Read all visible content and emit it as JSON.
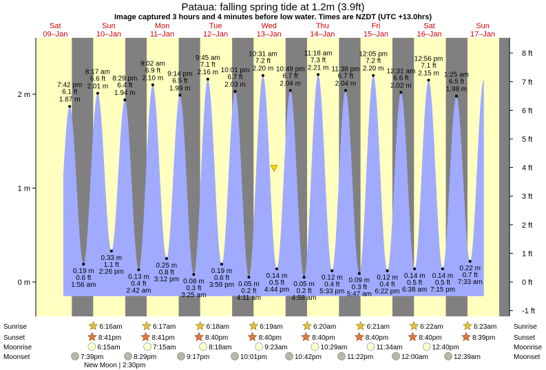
{
  "title": "Pataua: falling  spring tide at 1.2m (3.9ft)",
  "subtitle": "Image captured 3 hours and 4 minutes before low water. Times are NZDT (UTC +13.0hrs)",
  "colors": {
    "day_bg": "#ffffc0",
    "night_bg": "#808080",
    "tide_fill": "#a0aaff",
    "day_label": "#d00000",
    "marker": "#ffd700"
  },
  "chart_data": {
    "type": "area",
    "y_left_unit": "m",
    "y_right_unit": "ft",
    "ylim_m": [
      -0.37,
      2.62
    ],
    "left_ticks": [
      "0 m",
      "1 m",
      "2 m"
    ],
    "right_ticks": [
      "-1 ft",
      "0 ft",
      "1 ft",
      "2 ft",
      "3 ft",
      "4 ft",
      "5 ft",
      "6 ft",
      "7 ft",
      "8 ft"
    ],
    "days": [
      {
        "dow": "Sat",
        "date": "09–Jan"
      },
      {
        "dow": "Sun",
        "date": "10–Jan"
      },
      {
        "dow": "Mon",
        "date": "11–Jan"
      },
      {
        "dow": "Tue",
        "date": "12–Jan"
      },
      {
        "dow": "Wed",
        "date": "13–Jan"
      },
      {
        "dow": "Thu",
        "date": "14–Jan"
      },
      {
        "dow": "Fri",
        "date": "15–Jan"
      },
      {
        "dow": "Sat",
        "date": "16–Jan"
      },
      {
        "dow": "Sun",
        "date": "17–Jan"
      }
    ],
    "tides": [
      {
        "type": "high",
        "time": "7:42 pm",
        "ft": "6.1 ft",
        "m": "1.87 m",
        "day": 0,
        "hour": 19.7
      },
      {
        "type": "low",
        "time": "1:56 am",
        "ft": "0.6 ft",
        "m": "0.19 m",
        "day": 1,
        "hour": 1.93
      },
      {
        "type": "high",
        "time": "8:17 am",
        "ft": "6.6 ft",
        "m": "2.01 m",
        "day": 1,
        "hour": 8.28
      },
      {
        "type": "low",
        "time": "2:26 pm",
        "ft": "1.1 ft",
        "m": "0.33 m",
        "day": 1,
        "hour": 14.43
      },
      {
        "type": "high",
        "time": "8:29 pm",
        "ft": "6.4 ft",
        "m": "1.94 m",
        "day": 1,
        "hour": 20.48
      },
      {
        "type": "low",
        "time": "2:42 am",
        "ft": "0.4 ft",
        "m": "0.13 m",
        "day": 2,
        "hour": 2.7
      },
      {
        "type": "high",
        "time": "9:02 am",
        "ft": "6.9 ft",
        "m": "2.10 m",
        "day": 2,
        "hour": 9.03
      },
      {
        "type": "low",
        "time": "3:12 pm",
        "ft": "0.8 ft",
        "m": "0.25 m",
        "day": 2,
        "hour": 15.2
      },
      {
        "type": "high",
        "time": "9:14 pm",
        "ft": "6.5 ft",
        "m": "1.99 m",
        "day": 2,
        "hour": 21.23
      },
      {
        "type": "low",
        "time": "3:25 am",
        "ft": "0.3 ft",
        "m": "0.08 m",
        "day": 3,
        "hour": 3.42
      },
      {
        "type": "high",
        "time": "9:45 am",
        "ft": "7.1 ft",
        "m": "2.16 m",
        "day": 3,
        "hour": 9.75
      },
      {
        "type": "low",
        "time": "3:59 pm",
        "ft": "0.6 ft",
        "m": "0.19 m",
        "day": 3,
        "hour": 15.98
      },
      {
        "type": "high",
        "time": "10:01 pm",
        "ft": "6.7 ft",
        "m": "2.03 m",
        "day": 3,
        "hour": 22.02
      },
      {
        "type": "low",
        "time": "4:11 am",
        "ft": "0.2 ft",
        "m": "0.05 m",
        "day": 4,
        "hour": 4.18
      },
      {
        "type": "high",
        "time": "10:31 am",
        "ft": "7.2 ft",
        "m": "2.20 m",
        "day": 4,
        "hour": 10.52
      },
      {
        "type": "low",
        "time": "4:44 pm",
        "ft": "0.5 ft",
        "m": "0.14 m",
        "day": 4,
        "hour": 16.73
      },
      {
        "type": "high",
        "time": "10:49 pm",
        "ft": "6.7 ft",
        "m": "2.04 m",
        "day": 4,
        "hour": 22.82
      },
      {
        "type": "low",
        "time": "4:58 am",
        "ft": "0.2 ft",
        "m": "0.05 m",
        "day": 5,
        "hour": 4.97
      },
      {
        "type": "high",
        "time": "11:18 am",
        "ft": "7.3 ft",
        "m": "2.21 m",
        "day": 5,
        "hour": 11.3
      },
      {
        "type": "low",
        "time": "5:33 pm",
        "ft": "0.4 ft",
        "m": "0.12 m",
        "day": 5,
        "hour": 17.55
      },
      {
        "type": "high",
        "time": "11:38 pm",
        "ft": "6.7 ft",
        "m": "2.04 m",
        "day": 5,
        "hour": 23.63
      },
      {
        "type": "low",
        "time": "5:47 am",
        "ft": "0.3 ft",
        "m": "0.09 m",
        "day": 6,
        "hour": 5.78
      },
      {
        "type": "high",
        "time": "12:05 pm",
        "ft": "7.2 ft",
        "m": "2.20 m",
        "day": 6,
        "hour": 12.08
      },
      {
        "type": "low",
        "time": "6:22 pm",
        "ft": "0.4 ft",
        "m": "0.12 m",
        "day": 6,
        "hour": 18.37
      },
      {
        "type": "high",
        "time": "12:31 am",
        "ft": "6.6 ft",
        "m": "2.02 m",
        "day": 7,
        "hour": 0.52
      },
      {
        "type": "low",
        "time": "6:38 am",
        "ft": "0.5 ft",
        "m": "0.14 m",
        "day": 7,
        "hour": 6.63
      },
      {
        "type": "high",
        "time": "12:56 pm",
        "ft": "7.1 ft",
        "m": "2.15 m",
        "day": 7,
        "hour": 12.93
      },
      {
        "type": "low",
        "time": "7:15 pm",
        "ft": "0.5 ft",
        "m": "0.14 m",
        "day": 7,
        "hour": 19.25
      },
      {
        "type": "high",
        "time": "1:25 am",
        "ft": "6.5 ft",
        "m": "1.98 m",
        "day": 8,
        "hour": 1.42
      },
      {
        "type": "low",
        "time": "7:33 am",
        "ft": "0.7 ft",
        "m": "0.22 m",
        "day": 8,
        "hour": 7.55
      }
    ],
    "now_marker_m": 1.2,
    "sunrise": [
      "6:16am",
      "6:17am",
      "6:18am",
      "6:19am",
      "6:20am",
      "6:21am",
      "6:22am",
      "6:23am"
    ],
    "sunset": [
      "8:41pm",
      "8:41pm",
      "8:40pm",
      "8:40pm",
      "8:40pm",
      "8:40pm",
      "8:40pm",
      "8:39pm"
    ],
    "moonrise": [
      "6:15am",
      "7:15am",
      "8:18am",
      "9:23am",
      "10:29am",
      "11:34am",
      "12:40pm"
    ],
    "moonset": [
      "7:39pm",
      "8:29pm",
      "9:17pm",
      "10:01pm",
      "10:42pm",
      "11:22pm",
      "12:00am",
      "12:39am"
    ],
    "new_moon": "New Moon | 2:30pm",
    "row_labels": [
      "Sunrise",
      "Sunset",
      "Moonrise",
      "Moonset"
    ]
  }
}
